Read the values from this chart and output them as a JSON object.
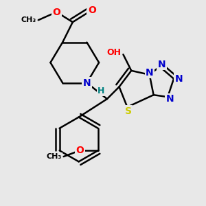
{
  "background_color": "#e8e8e8",
  "line_color": "#000000",
  "bond_width": 1.8,
  "atom_colors": {
    "O": "#ff0000",
    "N": "#0000cc",
    "S": "#cccc00",
    "H_label": "#008080",
    "C": "#000000"
  },
  "figsize": [
    3.0,
    3.0
  ],
  "dpi": 100,
  "xlim": [
    0,
    10
  ],
  "ylim": [
    0,
    10
  ]
}
